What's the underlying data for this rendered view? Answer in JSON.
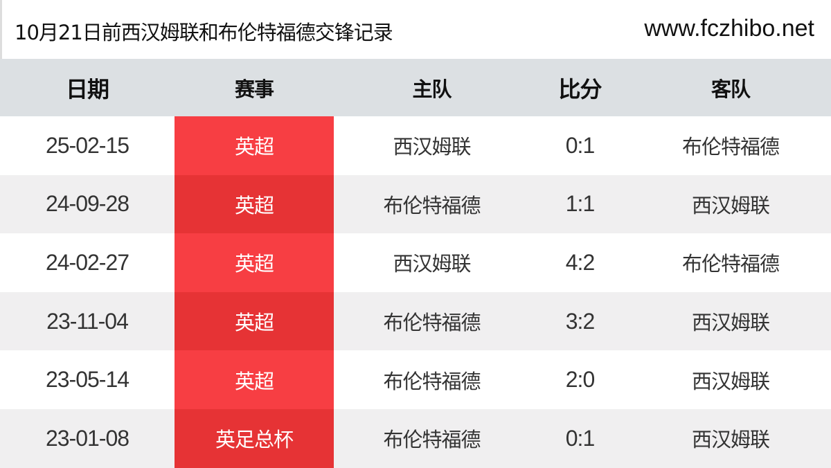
{
  "header": {
    "title": "10月21日前西汉姆联和布伦特福德交锋记录",
    "site": "www.fczhibo.net"
  },
  "columns": [
    "日期",
    "赛事",
    "主队",
    "比分",
    "客队"
  ],
  "rows": [
    {
      "date": "25-02-15",
      "comp": "英超",
      "home": "西汉姆联",
      "score": "0:1",
      "away": "布伦特福德"
    },
    {
      "date": "24-09-28",
      "comp": "英超",
      "home": "布伦特福德",
      "score": "1:1",
      "away": "西汉姆联"
    },
    {
      "date": "24-02-27",
      "comp": "英超",
      "home": "西汉姆联",
      "score": "4:2",
      "away": "布伦特福德"
    },
    {
      "date": "23-11-04",
      "comp": "英超",
      "home": "布伦特福德",
      "score": "3:2",
      "away": "西汉姆联"
    },
    {
      "date": "23-05-14",
      "comp": "英超",
      "home": "布伦特福德",
      "score": "2:0",
      "away": "西汉姆联"
    },
    {
      "date": "23-01-08",
      "comp": "英足总杯",
      "home": "布伦特福德",
      "score": "0:1",
      "away": "西汉姆联"
    }
  ],
  "colors": {
    "competition_red": "#f73e43",
    "competition_red_alt": "#e63335",
    "header_bg": "#dce0e3"
  }
}
